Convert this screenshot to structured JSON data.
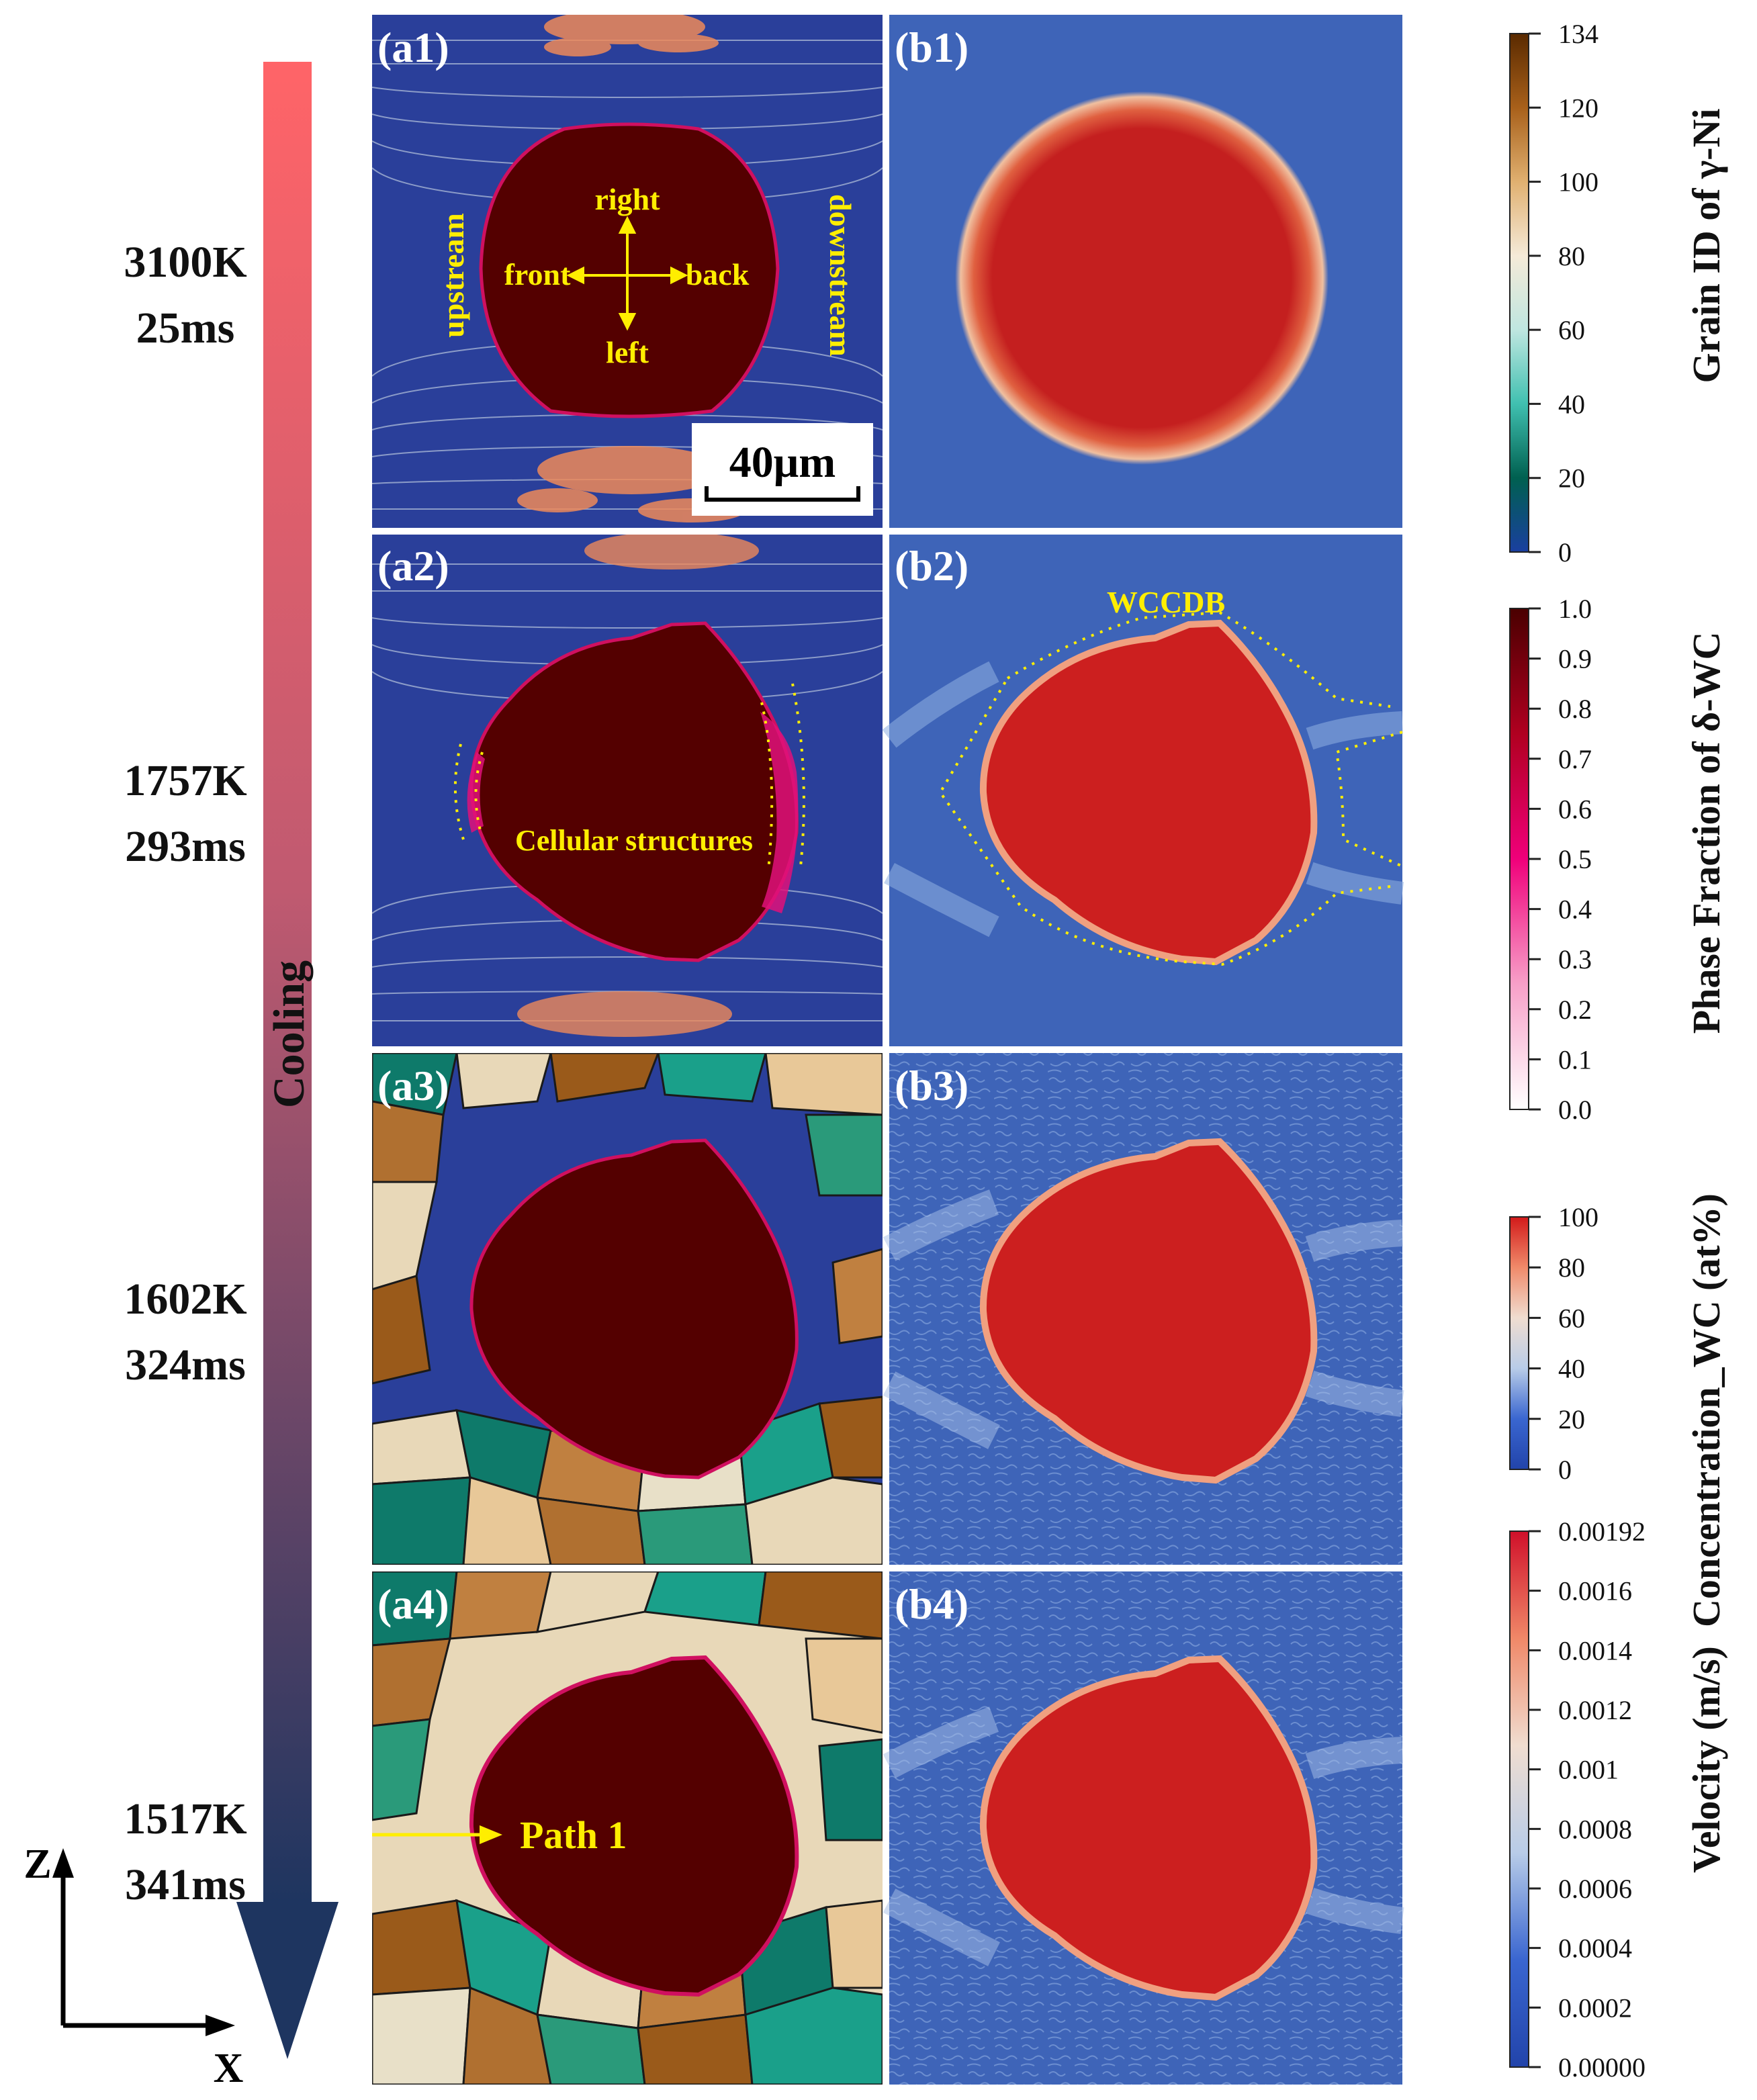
{
  "states": [
    {
      "temp": "3100K",
      "time": "25ms"
    },
    {
      "temp": "1757K",
      "time": "293ms"
    },
    {
      "temp": "1602K",
      "time": "324ms"
    },
    {
      "temp": "1517K",
      "time": "341ms"
    }
  ],
  "arrow_label": "Cooling",
  "axes": {
    "z": "Z",
    "x": "X"
  },
  "panels_a": [
    "(a1)",
    "(a2)",
    "(a3)",
    "(a4)"
  ],
  "panels_b": [
    "(b1)",
    "(b2)",
    "(b3)",
    "(b4)"
  ],
  "annotations": {
    "right": "right",
    "left": "left",
    "front": "front",
    "back": "back",
    "upstream": "upstream",
    "downstream": "downstream",
    "scale_bar": "40μm",
    "cellular": "Cellular structures",
    "wccdb": "WCCDB",
    "path": "Path 1"
  },
  "colorbars": [
    {
      "title": "Grain ID of γ-Ni",
      "ticks": [
        "134",
        "120",
        "100",
        "80",
        "60",
        "40",
        "20",
        "0"
      ],
      "colors": [
        "#5a2a00",
        "#a8601a",
        "#e0b070",
        "#f5ead8",
        "#bfe6e0",
        "#40c0b0",
        "#006050",
        "#1a3fa0"
      ]
    },
    {
      "title": "Phase Fraction of δ-WC",
      "ticks": [
        "1.0",
        "0.9",
        "0.8",
        "0.7",
        "0.6",
        "0.5",
        "0.4",
        "0.3",
        "0.2",
        "0.1",
        "0.0"
      ],
      "colors": [
        "#4a0000",
        "#b00020",
        "#f0007a",
        "#f7a0c8",
        "#ffffff"
      ]
    },
    {
      "title": "Concentration_WC (at%)",
      "ticks": [
        "100",
        "80",
        "60",
        "40",
        "20",
        "0"
      ],
      "colors": [
        "#d21a1a",
        "#f08a6a",
        "#f0ddd0",
        "#b8cce8",
        "#3a66d0",
        "#2244aa"
      ]
    },
    {
      "title": "Velocity (m/s)",
      "ticks": [
        "0.00192",
        "0.0016",
        "0.0014",
        "0.0012",
        "0.001",
        "0.0008",
        "0.0006",
        "0.0004",
        "0.0002",
        "0.00000"
      ],
      "colors": [
        "#d0102a",
        "#f08868",
        "#f0ddd0",
        "#b8cce8",
        "#3a66d0",
        "#2244aa"
      ]
    }
  ]
}
